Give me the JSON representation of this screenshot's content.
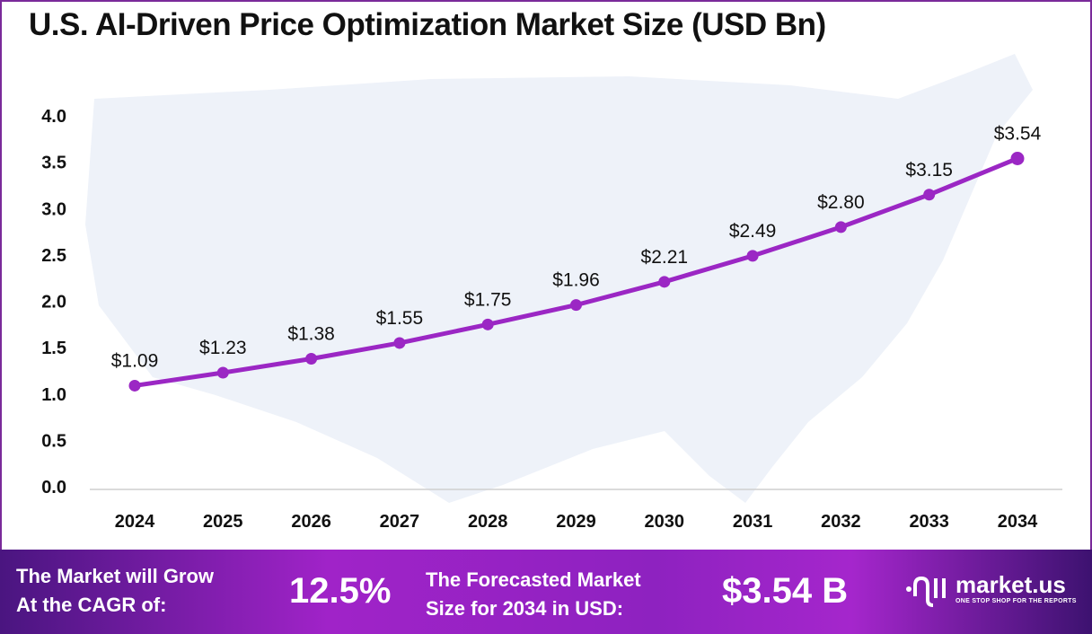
{
  "chart_data": {
    "type": "line",
    "title": "U.S. AI-Driven Price Optimization Market Size (USD Bn)",
    "categories": [
      "2024",
      "2025",
      "2026",
      "2027",
      "2028",
      "2029",
      "2030",
      "2031",
      "2032",
      "2033",
      "2034"
    ],
    "values": [
      1.09,
      1.23,
      1.38,
      1.55,
      1.75,
      1.96,
      2.21,
      2.49,
      2.8,
      3.15,
      3.54
    ],
    "data_labels": [
      "$1.09",
      "$1.23",
      "$1.38",
      "$1.55",
      "$1.75",
      "$1.96",
      "$2.21",
      "$2.49",
      "$2.80",
      "$3.15",
      "$3.54"
    ],
    "y_ticks": [
      "0.0",
      "0.5",
      "1.0",
      "1.5",
      "2.0",
      "2.5",
      "3.0",
      "3.5",
      "4.0"
    ],
    "ylim": [
      0,
      4.0
    ],
    "grid": false,
    "line_color": "#9b27c4",
    "background": "US map silhouette"
  },
  "footer": {
    "cagr_label_line1": "The Market will Grow",
    "cagr_label_line2": "At the CAGR of:",
    "cagr_value": "12.5%",
    "forecast_label_line1": "The Forecasted Market",
    "forecast_label_line2": "Size for 2034 in USD:",
    "forecast_value": "$3.54 B",
    "brand": "market.us",
    "brand_tagline": "ONE STOP SHOP FOR THE REPORTS"
  }
}
